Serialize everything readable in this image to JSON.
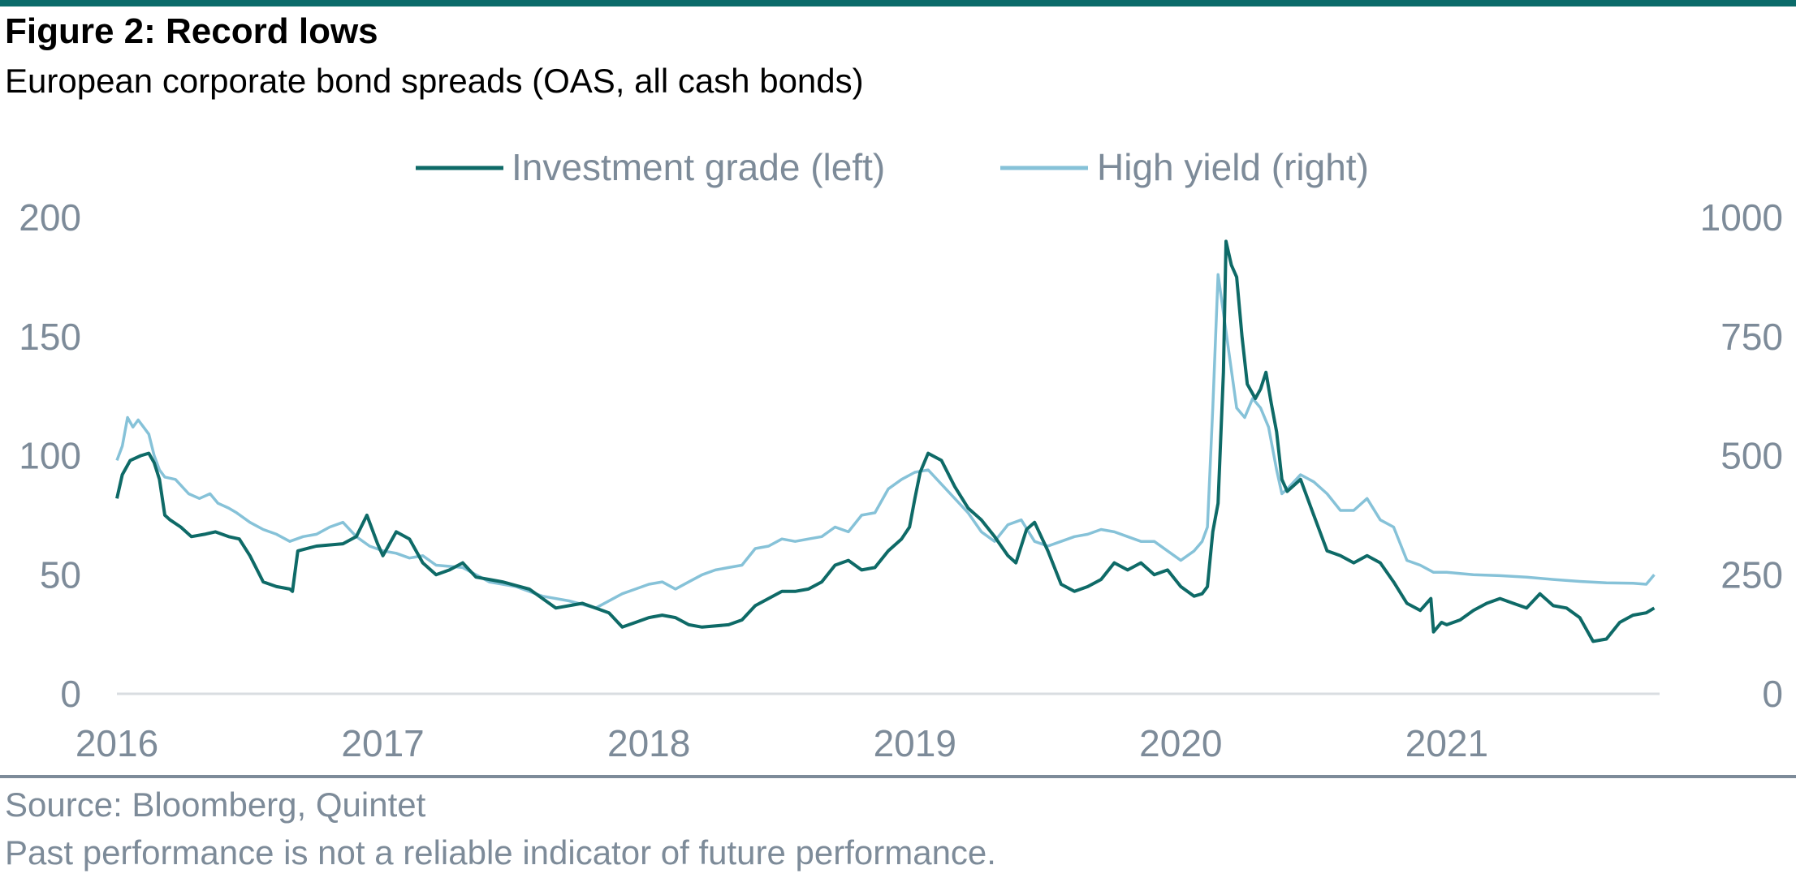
{
  "header": {
    "title": "Figure 2: Record lows",
    "subtitle": "European corporate bond spreads (OAS, all cash bonds)"
  },
  "footer": {
    "source": "Source: Bloomberg, Quintet",
    "disclaimer": "Past performance is not a reliable indicator of future performance."
  },
  "colors": {
    "accent_rule": "#0b6b6a",
    "text_gray": "#7d8b99",
    "axis_line": "#d9dde1",
    "investment_grade": "#0e6a67",
    "high_yield": "#86c2d8"
  },
  "chart_data": {
    "type": "line",
    "title": "Figure 2: Record lows",
    "subtitle": "European corporate bond spreads (OAS, all cash bonds)",
    "xlabel": "",
    "ylabel_left": "",
    "ylabel_right": "",
    "x_range": [
      2016.0,
      2021.8
    ],
    "x_ticks": [
      "2016",
      "2017",
      "2018",
      "2019",
      "2020",
      "2021"
    ],
    "y_left": {
      "range": [
        0,
        200
      ],
      "ticks": [
        "0",
        "50",
        "100",
        "150",
        "200"
      ]
    },
    "y_right": {
      "range": [
        0,
        1000
      ],
      "ticks": [
        "0",
        "250",
        "500",
        "750",
        "1000"
      ]
    },
    "grid": false,
    "legend": {
      "position": "top-center",
      "entries": [
        "Investment grade (left)",
        "High yield (right)"
      ]
    },
    "series": [
      {
        "name": "Investment grade (left)",
        "axis": "left",
        "x": [
          2016.0,
          2016.02,
          2016.05,
          2016.09,
          2016.12,
          2016.14,
          2016.16,
          2016.18,
          2016.2,
          2016.24,
          2016.28,
          2016.33,
          2016.37,
          2016.42,
          2016.46,
          2016.5,
          2016.55,
          2016.6,
          2016.65,
          2016.66,
          2016.68,
          2016.75,
          2016.85,
          2016.9,
          2016.94,
          2016.98,
          2017.0,
          2017.05,
          2017.1,
          2017.15,
          2017.2,
          2017.25,
          2017.3,
          2017.35,
          2017.4,
          2017.45,
          2017.55,
          2017.65,
          2017.75,
          2017.85,
          2017.9,
          2017.95,
          2018.0,
          2018.05,
          2018.1,
          2018.15,
          2018.2,
          2018.3,
          2018.35,
          2018.4,
          2018.5,
          2018.55,
          2018.6,
          2018.65,
          2018.7,
          2018.75,
          2018.8,
          2018.85,
          2018.9,
          2018.95,
          2018.98,
          2019.0,
          2019.02,
          2019.05,
          2019.1,
          2019.15,
          2019.2,
          2019.25,
          2019.3,
          2019.35,
          2019.38,
          2019.42,
          2019.45,
          2019.5,
          2019.55,
          2019.6,
          2019.65,
          2019.7,
          2019.75,
          2019.8,
          2019.85,
          2019.9,
          2019.95,
          2020.0,
          2020.05,
          2020.08,
          2020.1,
          2020.12,
          2020.14,
          2020.16,
          2020.17,
          2020.19,
          2020.21,
          2020.23,
          2020.25,
          2020.28,
          2020.3,
          2020.32,
          2020.34,
          2020.36,
          2020.38,
          2020.4,
          2020.45,
          2020.5,
          2020.55,
          2020.6,
          2020.65,
          2020.7,
          2020.75,
          2020.8,
          2020.85,
          2020.9,
          2020.94,
          2020.95,
          2020.98,
          2021.0,
          2021.05,
          2021.1,
          2021.15,
          2021.2,
          2021.25,
          2021.3,
          2021.35,
          2021.4,
          2021.45,
          2021.5,
          2021.55,
          2021.6,
          2021.65,
          2021.7,
          2021.75,
          2021.78
        ],
        "y": [
          82,
          92,
          98,
          100,
          101,
          97,
          90,
          75,
          73,
          70,
          66,
          67,
          68,
          66,
          65,
          58,
          47,
          45,
          44,
          43,
          60,
          62,
          63,
          66,
          75,
          63,
          58,
          68,
          65,
          55,
          50,
          52,
          55,
          49,
          48,
          47,
          44,
          36,
          38,
          34,
          28,
          30,
          32,
          33,
          32,
          29,
          28,
          29,
          31,
          37,
          43,
          43,
          44,
          47,
          54,
          56,
          52,
          53,
          60,
          65,
          70,
          82,
          93,
          101,
          98,
          87,
          78,
          73,
          66,
          58,
          55,
          69,
          72,
          60,
          46,
          43,
          45,
          48,
          55,
          52,
          55,
          50,
          52,
          45,
          41,
          42,
          45,
          68,
          80,
          135,
          190,
          180,
          175,
          150,
          130,
          124,
          128,
          135,
          122,
          110,
          90,
          85,
          90,
          75,
          60,
          58,
          55,
          58,
          55,
          47,
          38,
          35,
          40,
          26,
          30,
          29,
          31,
          35,
          38,
          40,
          38,
          36,
          42,
          37,
          36,
          32,
          22,
          23,
          30,
          33,
          34,
          36
        ]
      },
      {
        "name": "High yield (right)",
        "axis": "right",
        "x": [
          2016.0,
          2016.02,
          2016.04,
          2016.06,
          2016.08,
          2016.1,
          2016.12,
          2016.14,
          2016.16,
          2016.18,
          2016.22,
          2016.27,
          2016.31,
          2016.35,
          2016.38,
          2016.42,
          2016.45,
          2016.5,
          2016.55,
          2016.6,
          2016.65,
          2016.7,
          2016.75,
          2016.8,
          2016.85,
          2016.9,
          2016.95,
          2017.0,
          2017.05,
          2017.1,
          2017.15,
          2017.2,
          2017.3,
          2017.4,
          2017.5,
          2017.6,
          2017.7,
          2017.8,
          2017.9,
          2017.95,
          2018.0,
          2018.05,
          2018.1,
          2018.15,
          2018.2,
          2018.25,
          2018.3,
          2018.35,
          2018.4,
          2018.45,
          2018.5,
          2018.55,
          2018.6,
          2018.65,
          2018.7,
          2018.75,
          2018.8,
          2018.85,
          2018.9,
          2018.95,
          2019.0,
          2019.05,
          2019.1,
          2019.15,
          2019.2,
          2019.25,
          2019.3,
          2019.35,
          2019.4,
          2019.45,
          2019.5,
          2019.55,
          2019.6,
          2019.65,
          2019.7,
          2019.75,
          2019.8,
          2019.85,
          2019.9,
          2019.95,
          2020.0,
          2020.05,
          2020.08,
          2020.1,
          2020.12,
          2020.14,
          2020.16,
          2020.18,
          2020.21,
          2020.24,
          2020.27,
          2020.3,
          2020.33,
          2020.36,
          2020.38,
          2020.4,
          2020.45,
          2020.5,
          2020.55,
          2020.6,
          2020.65,
          2020.7,
          2020.75,
          2020.8,
          2020.85,
          2020.9,
          2020.95,
          2021.0,
          2021.1,
          2021.2,
          2021.3,
          2021.4,
          2021.5,
          2021.6,
          2021.7,
          2021.75,
          2021.78
        ],
        "y": [
          490,
          520,
          580,
          560,
          575,
          560,
          545,
          500,
          470,
          455,
          450,
          420,
          410,
          420,
          400,
          390,
          380,
          360,
          345,
          335,
          320,
          330,
          335,
          350,
          360,
          330,
          310,
          300,
          295,
          285,
          290,
          270,
          265,
          235,
          225,
          205,
          195,
          180,
          210,
          220,
          230,
          235,
          220,
          235,
          250,
          260,
          265,
          270,
          305,
          310,
          325,
          320,
          325,
          330,
          350,
          340,
          375,
          380,
          430,
          450,
          465,
          470,
          440,
          410,
          380,
          340,
          320,
          355,
          365,
          320,
          310,
          320,
          330,
          335,
          345,
          340,
          330,
          320,
          320,
          300,
          280,
          300,
          320,
          350,
          600,
          880,
          800,
          720,
          600,
          580,
          620,
          600,
          560,
          470,
          420,
          430,
          460,
          445,
          420,
          385,
          385,
          410,
          365,
          350,
          280,
          270,
          255,
          255,
          250,
          248,
          245,
          240,
          236,
          233,
          232,
          230,
          250
        ]
      }
    ]
  }
}
